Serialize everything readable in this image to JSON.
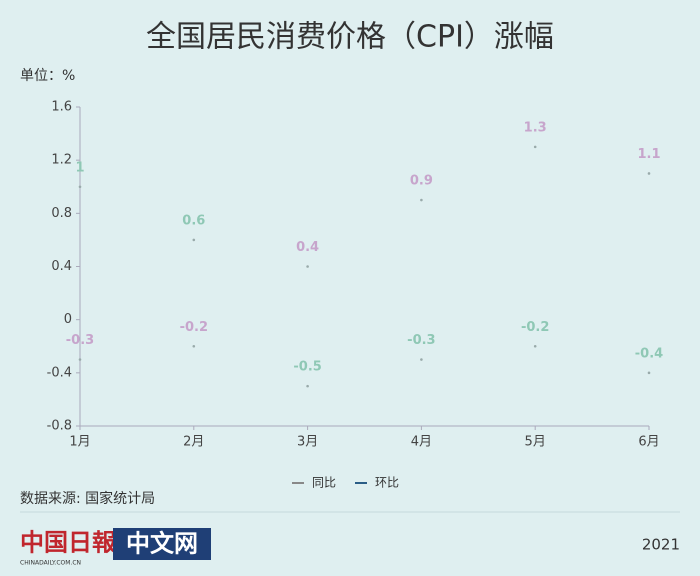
{
  "chart_data": {
    "type": "scatter",
    "title": "全国居民消费价格（CPI）涨幅",
    "y_label": "单位：%",
    "categories": [
      "1月",
      "2月",
      "3月",
      "4月",
      "5月",
      "6月"
    ],
    "series": [
      {
        "name": "同比",
        "color": "#c7a5cc",
        "legend_color": "#888888",
        "values": [
          -0.3,
          -0.2,
          0.4,
          0.9,
          1.3,
          1.1
        ]
      },
      {
        "name": "环比",
        "color": "#8fc8b5",
        "legend_color": "#2a5d86",
        "values": [
          1,
          0.6,
          -0.5,
          -0.3,
          -0.2,
          -0.4
        ]
      }
    ],
    "ylim": [
      -0.8,
      1.6
    ],
    "yticks": [
      1.6,
      1.2,
      0.8,
      0.4,
      0,
      -0.4,
      -0.8
    ],
    "grid": false,
    "legend": "bottom",
    "source": "数据来源: 国家统计局",
    "logo": "中国日報",
    "logo_box": "中文网",
    "logo_url": "CHINADAILY.COM.CN",
    "year": "2021"
  }
}
